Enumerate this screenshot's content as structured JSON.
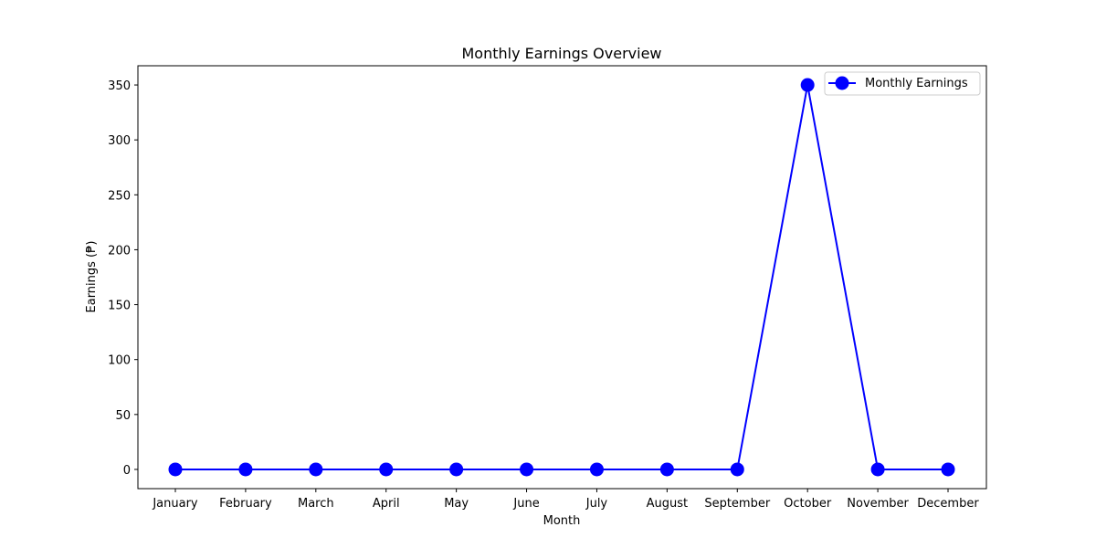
{
  "chart_data": {
    "type": "line",
    "title": "Monthly Earnings Overview",
    "xlabel": "Month",
    "ylabel": "Earnings (₱)",
    "categories": [
      "January",
      "February",
      "March",
      "April",
      "May",
      "June",
      "July",
      "August",
      "September",
      "October",
      "November",
      "December"
    ],
    "series": [
      {
        "name": "Monthly Earnings",
        "values": [
          0,
          0,
          0,
          0,
          0,
          0,
          0,
          0,
          0,
          350,
          0,
          0
        ],
        "color": "#0000ff",
        "marker": "circle"
      }
    ],
    "ylim": [
      -17.5,
      367.5
    ],
    "yticks": [
      0,
      50,
      100,
      150,
      200,
      250,
      300,
      350
    ],
    "grid": false,
    "legend_position": "upper-right"
  }
}
